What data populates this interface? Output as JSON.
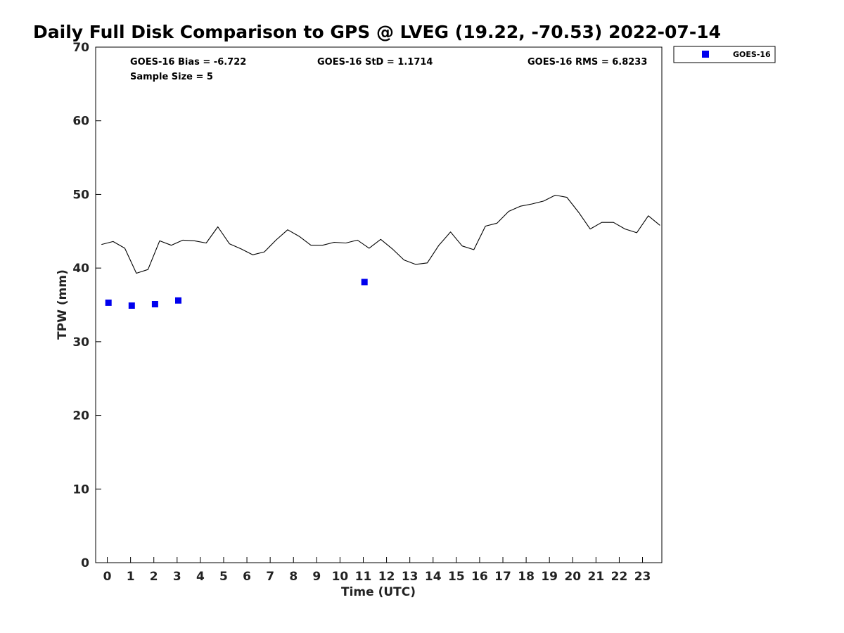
{
  "chart_data": {
    "type": "line",
    "title": "Daily Full Disk Comparison to GPS @ LVEG (19.22, -70.53) 2022-07-14",
    "xlabel": "Time (UTC)",
    "ylabel": "TPW (mm)",
    "xlim": [
      -0.5,
      23.83
    ],
    "ylim": [
      0,
      70
    ],
    "x_ticks": [
      "0",
      "1",
      "2",
      "3",
      "4",
      "5",
      "6",
      "7",
      "8",
      "9",
      "10",
      "11",
      "12",
      "13",
      "14",
      "15",
      "16",
      "17",
      "18",
      "19",
      "20",
      "21",
      "22",
      "23"
    ],
    "y_ticks": [
      "0",
      "10",
      "20",
      "30",
      "40",
      "50",
      "60",
      "70"
    ],
    "grid": false,
    "legend_position": "top-right (outside plot)",
    "stats": {
      "bias": "GOES-16 Bias = -6.722",
      "std": "GOES-16 StD = 1.1714",
      "rms": "GOES-16 RMS = 6.8233",
      "sample_size": "Sample Size = 5"
    },
    "series": [
      {
        "kind": "line",
        "color": "#000000",
        "x": [
          -0.25,
          0.25,
          0.75,
          1.25,
          1.75,
          2.25,
          2.75,
          3.25,
          3.75,
          4.25,
          4.75,
          5.25,
          5.75,
          6.25,
          6.75,
          7.25,
          7.75,
          8.25,
          8.75,
          9.25,
          9.75,
          10.25,
          10.75,
          11.25,
          11.75,
          12.25,
          12.75,
          13.25,
          13.75,
          14.25,
          14.75,
          15.25,
          15.75,
          16.25,
          16.75,
          17.25,
          17.75,
          18.25,
          18.75,
          19.25,
          19.75,
          20.25,
          20.75,
          21.25,
          21.75,
          22.25,
          22.75,
          23.25,
          23.75
        ],
        "y": [
          43.2,
          43.6,
          42.7,
          39.3,
          39.8,
          43.7,
          43.1,
          43.8,
          43.7,
          43.4,
          45.6,
          43.3,
          42.6,
          41.8,
          42.2,
          43.8,
          45.2,
          44.3,
          43.1,
          43.1,
          43.5,
          43.4,
          43.8,
          42.7,
          43.9,
          42.6,
          41.1,
          40.5,
          40.7,
          43.1,
          44.9,
          43.0,
          42.5,
          45.7,
          46.1,
          47.7,
          48.4,
          48.7,
          49.1,
          49.9,
          49.6,
          47.6,
          45.3,
          46.2,
          46.2,
          45.3,
          44.8,
          47.1,
          45.8
        ]
      },
      {
        "name": "GOES-16",
        "kind": "scatter",
        "marker": "square",
        "color": "#0000ee",
        "x": [
          0.05,
          1.05,
          2.05,
          3.05,
          11.05
        ],
        "y": [
          35.3,
          34.9,
          35.1,
          35.6,
          38.1
        ]
      }
    ]
  }
}
